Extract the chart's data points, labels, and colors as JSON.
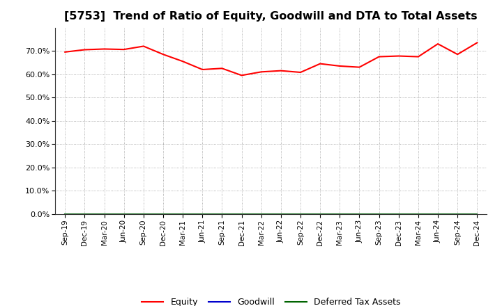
{
  "title": "[5753]  Trend of Ratio of Equity, Goodwill and DTA to Total Assets",
  "x_labels": [
    "Sep-19",
    "Dec-19",
    "Mar-20",
    "Jun-20",
    "Sep-20",
    "Dec-20",
    "Mar-21",
    "Jun-21",
    "Sep-21",
    "Dec-21",
    "Mar-22",
    "Jun-22",
    "Sep-22",
    "Dec-22",
    "Mar-23",
    "Jun-23",
    "Sep-23",
    "Dec-23",
    "Mar-24",
    "Jun-24",
    "Sep-24",
    "Dec-24"
  ],
  "equity": [
    69.5,
    70.5,
    70.8,
    70.6,
    72.0,
    68.5,
    65.5,
    62.0,
    62.5,
    59.5,
    61.0,
    61.5,
    60.8,
    64.5,
    63.5,
    63.0,
    67.5,
    67.8,
    67.5,
    73.0,
    68.5,
    73.5
  ],
  "goodwill": [
    0.0,
    0.0,
    0.0,
    0.0,
    0.0,
    0.0,
    0.0,
    0.0,
    0.0,
    0.0,
    0.0,
    0.0,
    0.0,
    0.0,
    0.0,
    0.0,
    0.0,
    0.0,
    0.0,
    0.0,
    0.0,
    0.0
  ],
  "dta": [
    0.0,
    0.0,
    0.0,
    0.0,
    0.0,
    0.0,
    0.0,
    0.0,
    0.0,
    0.0,
    0.0,
    0.0,
    0.0,
    0.0,
    0.0,
    0.0,
    0.0,
    0.0,
    0.0,
    0.0,
    0.0,
    0.0
  ],
  "equity_color": "#ff0000",
  "goodwill_color": "#0000cd",
  "dta_color": "#006400",
  "ylim": [
    0,
    80
  ],
  "yticks": [
    0,
    10,
    20,
    30,
    40,
    50,
    60,
    70
  ],
  "background_color": "#ffffff",
  "plot_bg_color": "#ffffff",
  "grid_color": "#999999",
  "title_fontsize": 11.5,
  "legend_labels": [
    "Equity",
    "Goodwill",
    "Deferred Tax Assets"
  ],
  "line_width": 1.5
}
